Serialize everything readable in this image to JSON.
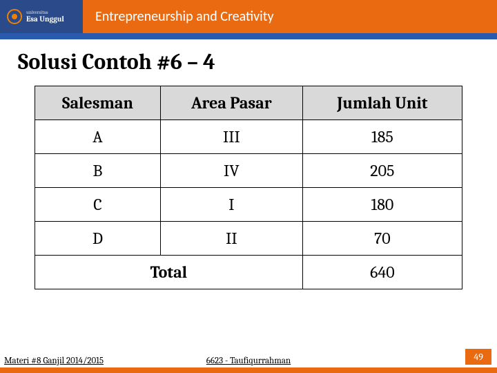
{
  "header": {
    "logo_line1": "Esa Unggul",
    "logo_line2": "universitas",
    "title": "Entrepreneurship and Creativity"
  },
  "slide": {
    "title": "Solusi Contoh #6 – 4"
  },
  "table": {
    "columns": [
      "Salesman",
      "Area Pasar",
      "Jumlah Unit"
    ],
    "rows": [
      [
        "A",
        "III",
        "185"
      ],
      [
        "B",
        "IV",
        "205"
      ],
      [
        "C",
        "I",
        "180"
      ],
      [
        "D",
        "II",
        "70"
      ]
    ],
    "total_label": "Total",
    "total_value": "640",
    "header_bg": "#d9d9d9",
    "border_color": "#000000",
    "cell_fontsize": 24
  },
  "footer": {
    "left": "Materi #8 Ganjil 2014/2015",
    "center": "6623 - Taufiqurrahman",
    "page": "49"
  },
  "colors": {
    "header_orange": "#e96a10",
    "header_blue": "#2a4a8a",
    "strip_blue": "#2a5aad"
  }
}
